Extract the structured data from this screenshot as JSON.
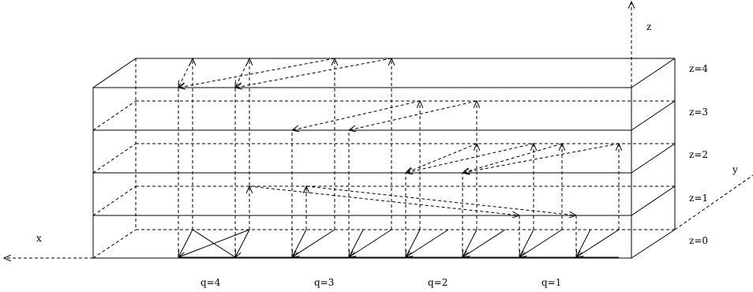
{
  "axes": {
    "x_label": "x",
    "y_label": "y",
    "z_label": "z"
  },
  "levels": [
    "z=0",
    "z=1",
    "z=2",
    "z=3",
    "z=4"
  ],
  "groups": [
    "q=4",
    "q=3",
    "q=2",
    "q=1"
  ]
}
